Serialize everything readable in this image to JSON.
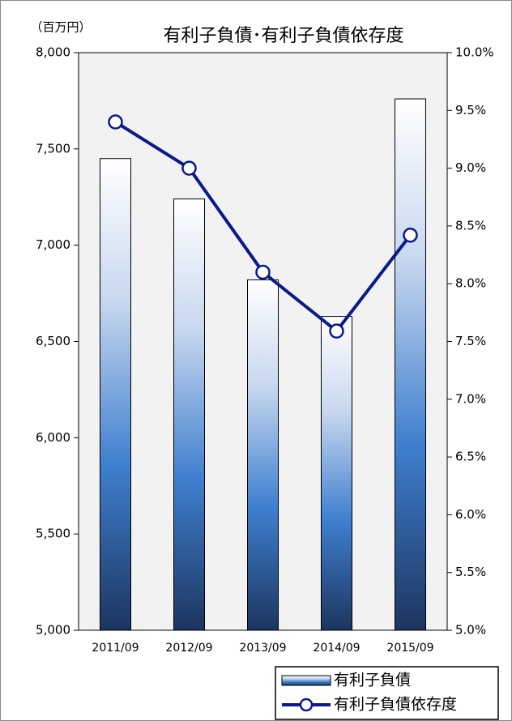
{
  "chart_data": {
    "type": "bar",
    "title": "有利子負債･有利子負債依存度",
    "y_label": "（百万円）",
    "categories": [
      "2011/09",
      "2012/09",
      "2013/09",
      "2014/09",
      "2015/09"
    ],
    "series": [
      {
        "name": "有利子負債",
        "type": "bar",
        "color": "#3f7fcf",
        "axis": "y",
        "values": [
          7450,
          7240,
          6820,
          6630,
          7760
        ]
      },
      {
        "name": "有利子負債依存度",
        "type": "line",
        "color": "#0a1a8a",
        "axis": "y2",
        "values": [
          9.4,
          9.0,
          8.1,
          7.59,
          8.42
        ]
      }
    ],
    "ylim": [
      5000,
      8000
    ],
    "yticks": [
      {
        "value": 5000,
        "label": "5,000"
      },
      {
        "value": 5500,
        "label": "5,500"
      },
      {
        "value": 6000,
        "label": "6,000"
      },
      {
        "value": 6500,
        "label": "6,500"
      },
      {
        "value": 7000,
        "label": "7,000"
      },
      {
        "value": 7500,
        "label": "7,500"
      },
      {
        "value": 8000,
        "label": "8,000"
      }
    ],
    "y2lim": [
      5,
      10
    ],
    "y2ticks": [
      {
        "value": 5,
        "label": "5.0%"
      },
      {
        "value": 5.5,
        "label": "5.5%"
      },
      {
        "value": 6,
        "label": "6.0%"
      },
      {
        "value": 6.5,
        "label": "6.5%"
      },
      {
        "value": 7,
        "label": "7.0%"
      },
      {
        "value": 7.5,
        "label": "7.5%"
      },
      {
        "value": 8,
        "label": "8.0%"
      },
      {
        "value": 8.5,
        "label": "8.5%"
      },
      {
        "value": 9,
        "label": "9.0%"
      },
      {
        "value": 9.5,
        "label": "9.5%"
      },
      {
        "value": 10,
        "label": "10.0%"
      }
    ],
    "grid": false,
    "background": "#f2f2f2",
    "legend": "bottom-right"
  }
}
